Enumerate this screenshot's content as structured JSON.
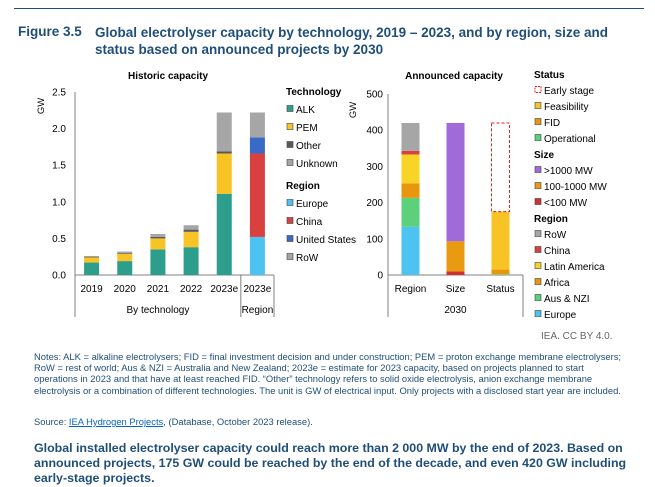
{
  "figure": {
    "number": "Figure 3.5",
    "title": "Global electrolyser capacity by technology, 2019 – 2023, and by region, size and status based on announced projects by 2030"
  },
  "colors": {
    "alk": "#2e9e8c",
    "pem": "#f7c325",
    "other": "#595959",
    "unknown": "#a6a6a6",
    "europe": "#4cc3f0",
    "china": "#d94040",
    "us": "#3a6ac7",
    "row": "#a6a6a6",
    "aus_nzi": "#5cd07a",
    "africa": "#e8960e",
    "latin_america": "#f7d425",
    "size_large": "#a06ad8",
    "size_mid": "#e89a10",
    "size_small": "#d03030",
    "early_stage": "#e02020",
    "axis": "#808080",
    "text": "#000000"
  },
  "chart_data": [
    {
      "type": "bar",
      "stacked": true,
      "title": "Historic capacity",
      "ylabel": "GW",
      "ylim": [
        0,
        2.5
      ],
      "yticks": [
        "0.0",
        "0.5",
        "1.0",
        "1.5",
        "2.0",
        "2.5"
      ],
      "categories": [
        "2019",
        "2020",
        "2021",
        "2022",
        "2023e",
        "2023e"
      ],
      "group_labels": [
        "By technology",
        "Region"
      ],
      "series": [
        {
          "name": "ALK",
          "values": [
            0.17,
            0.19,
            0.35,
            0.38,
            1.11,
            null
          ],
          "color_key": "alk"
        },
        {
          "name": "PEM",
          "values": [
            0.07,
            0.1,
            0.15,
            0.21,
            0.55,
            null
          ],
          "color_key": "pem"
        },
        {
          "name": "Other",
          "values": [
            0.01,
            0.01,
            0.02,
            0.03,
            0.03,
            null
          ],
          "color_key": "other"
        },
        {
          "name": "Unknown",
          "values": [
            0.01,
            0.02,
            0.04,
            0.06,
            0.53,
            null
          ],
          "color_key": "unknown"
        },
        {
          "name": "Europe",
          "values": [
            null,
            null,
            null,
            null,
            null,
            0.52
          ],
          "color_key": "europe"
        },
        {
          "name": "China",
          "values": [
            null,
            null,
            null,
            null,
            null,
            1.14
          ],
          "color_key": "china"
        },
        {
          "name": "United States",
          "values": [
            null,
            null,
            null,
            null,
            null,
            0.22
          ],
          "color_key": "us"
        },
        {
          "name": "RoW",
          "values": [
            null,
            null,
            null,
            null,
            null,
            0.34
          ],
          "color_key": "row"
        }
      ]
    },
    {
      "type": "bar",
      "stacked": true,
      "title": "Announced capacity",
      "ylabel": "GW",
      "ylim": [
        0,
        500
      ],
      "yticks": [
        "0",
        "100",
        "200",
        "300",
        "400",
        "500"
      ],
      "categories": [
        "Region",
        "Size",
        "Status"
      ],
      "xlabel": "2030",
      "stacks": [
        {
          "category": "Region",
          "segments": [
            {
              "name": "Europe",
              "value": 133,
              "color_key": "europe"
            },
            {
              "name": "Aus & NZI",
              "value": 80,
              "color_key": "aus_nzi"
            },
            {
              "name": "Africa",
              "value": 40,
              "color_key": "africa"
            },
            {
              "name": "Latin America",
              "value": 80,
              "color_key": "latin_america"
            },
            {
              "name": "China",
              "value": 10,
              "color_key": "china"
            },
            {
              "name": "RoW",
              "value": 77,
              "color_key": "row"
            }
          ]
        },
        {
          "category": "Size",
          "segments": [
            {
              "name": "<100 MW",
              "value": 10,
              "color_key": "size_small"
            },
            {
              "name": "100-1000 MW",
              "value": 83,
              "color_key": "size_mid"
            },
            {
              "name": ">1000 MW",
              "value": 327,
              "color_key": "size_large"
            }
          ]
        },
        {
          "category": "Status",
          "segments": [
            {
              "name": "Operational",
              "value": 2,
              "color_key": "aus_nzi"
            },
            {
              "name": "FID",
              "value": 13,
              "color_key": "africa"
            },
            {
              "name": "Feasibility",
              "value": 160,
              "color_key": "pem"
            },
            {
              "name": "Early stage",
              "value": 245,
              "color_key": "early_stage",
              "dashed": true
            }
          ]
        }
      ]
    }
  ],
  "legend": {
    "technology": {
      "heading": "Technology",
      "items": [
        {
          "label": "ALK",
          "color_key": "alk"
        },
        {
          "label": "PEM",
          "color_key": "pem"
        },
        {
          "label": "Other",
          "color_key": "other"
        },
        {
          "label": "Unknown",
          "color_key": "unknown"
        }
      ]
    },
    "region_hist": {
      "heading": "Region",
      "items": [
        {
          "label": "Europe",
          "color_key": "europe"
        },
        {
          "label": "China",
          "color_key": "china"
        },
        {
          "label": "United States",
          "color_key": "us"
        },
        {
          "label": "RoW",
          "color_key": "row"
        }
      ]
    },
    "status": {
      "heading": "Status",
      "items": [
        {
          "label": "Early stage",
          "color_key": "early_stage",
          "dashed": true
        },
        {
          "label": "Feasibility",
          "color_key": "pem"
        },
        {
          "label": "FID",
          "color_key": "africa"
        },
        {
          "label": "Operational",
          "color_key": "aus_nzi"
        }
      ]
    },
    "size": {
      "heading": "Size",
      "items": [
        {
          "label": ">1000 MW",
          "color_key": "size_large"
        },
        {
          "label": "100-1000 MW",
          "color_key": "size_mid"
        },
        {
          "label": "<100 MW",
          "color_key": "size_small"
        }
      ]
    },
    "region_ann": {
      "heading": "Region",
      "items": [
        {
          "label": "RoW",
          "color_key": "row"
        },
        {
          "label": "China",
          "color_key": "china"
        },
        {
          "label": "Latin America",
          "color_key": "latin_america"
        },
        {
          "label": "Africa",
          "color_key": "africa"
        },
        {
          "label": "Aus & NZI",
          "color_key": "aus_nzi"
        },
        {
          "label": "Europe",
          "color_key": "europe"
        }
      ]
    }
  },
  "credit": "IEA. CC BY 4.0.",
  "notes": "Notes: ALK = alkaline electrolysers; FID = final investment decision and under construction; PEM = proton exchange membrane electrolysers; RoW = rest of world; Aus & NZI = Australia and New Zealand; 2023e = estimate for 2023 capacity, based on projects planned to start operations in 2023 and that have at least reached FID. “Other” technology refers to solid oxide electrolysis, anion exchange membrane electrolysis or a combination of different technologies. The unit is GW of electrical input. Only projects with a disclosed start year are included.",
  "source": {
    "prefix": "Source: ",
    "link": "IEA Hydrogen Projects",
    "suffix": ", (Database, October 2023 release)."
  },
  "takeaway": "Global installed electrolyser capacity could reach more than 2 000 MW by the end of 2023. Based on announced projects, 175 GW could be reached by the end of the decade, and even 420 GW including early-stage projects."
}
